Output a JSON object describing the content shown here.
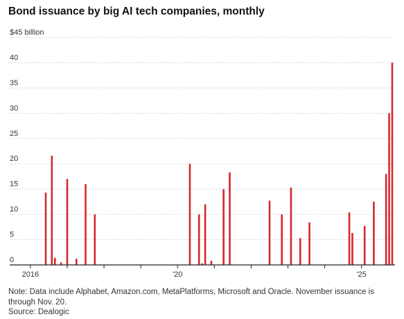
{
  "title": "Bond issuance by big AI tech companies, monthly",
  "note": "Note: Data include Alphabet, Amazon.com, MetaPlatforms, Microsoft and Oracle. November issuance is through Nov. 20.",
  "source": "Source: Dealogic",
  "bar_color": "#d7262e",
  "chart_data": {
    "type": "bar",
    "title": "Bond issuance by big AI tech companies, monthly",
    "ylabel": "",
    "ylim": [
      0,
      45
    ],
    "yticks": [
      0,
      5,
      10,
      15,
      20,
      25,
      30,
      35,
      40,
      45
    ],
    "ytick_labels": [
      "0",
      "5",
      "10",
      "15",
      "20",
      "25",
      "30",
      "35",
      "40",
      "$45 billion"
    ],
    "grid": true,
    "xlim": [
      "2016-01",
      "2025-12"
    ],
    "xticks": [
      {
        "month": "2016-01",
        "label": "2016"
      },
      {
        "month": "2020-01",
        "label": "'20"
      },
      {
        "month": "2025-01",
        "label": "'25"
      }
    ],
    "bars": [
      {
        "month": "2016-06",
        "value": 14.3
      },
      {
        "month": "2016-08",
        "value": 21.6
      },
      {
        "month": "2016-09",
        "value": 1.4
      },
      {
        "month": "2016-11",
        "value": 0.5
      },
      {
        "month": "2017-01",
        "value": 17.0
      },
      {
        "month": "2017-04",
        "value": 1.2
      },
      {
        "month": "2017-07",
        "value": 16.0
      },
      {
        "month": "2017-10",
        "value": 10.0
      },
      {
        "month": "2020-05",
        "value": 20.0
      },
      {
        "month": "2020-08",
        "value": 10.0
      },
      {
        "month": "2020-09",
        "value": 0.3
      },
      {
        "month": "2020-10",
        "value": 12.0
      },
      {
        "month": "2020-12",
        "value": 0.8
      },
      {
        "month": "2021-04",
        "value": 15.0
      },
      {
        "month": "2021-06",
        "value": 18.3
      },
      {
        "month": "2022-07",
        "value": 12.7
      },
      {
        "month": "2022-11",
        "value": 10.0
      },
      {
        "month": "2023-02",
        "value": 15.3
      },
      {
        "month": "2023-05",
        "value": 5.3
      },
      {
        "month": "2023-08",
        "value": 8.4
      },
      {
        "month": "2024-09",
        "value": 10.4
      },
      {
        "month": "2024-10",
        "value": 6.3
      },
      {
        "month": "2025-02",
        "value": 7.7
      },
      {
        "month": "2025-05",
        "value": 12.5
      },
      {
        "month": "2025-09",
        "value": 18.0
      },
      {
        "month": "2025-10",
        "value": 30.0
      },
      {
        "month": "2025-11",
        "value": 40.0
      }
    ]
  }
}
